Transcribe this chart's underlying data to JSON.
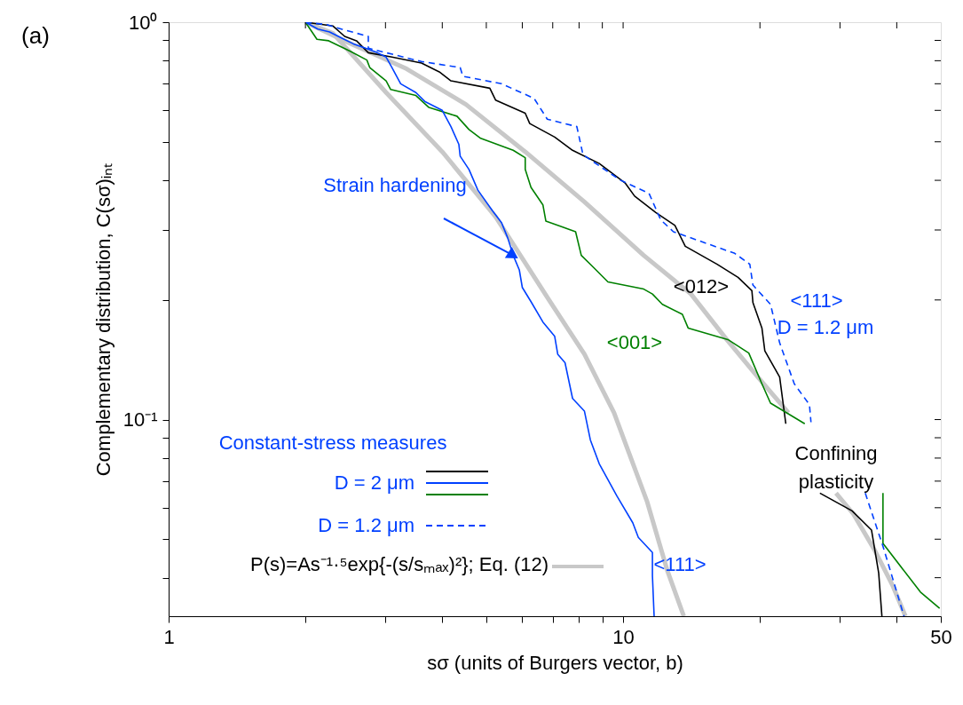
{
  "chart_data": {
    "type": "line",
    "xlabel": "sσ (units of Burgers vector, b)",
    "ylabel": "Complementary distribution, C(sσ)ᵢₙₜ",
    "log": "xy",
    "grid": false,
    "xlim": [
      1,
      50
    ],
    "ylim": [
      0.032,
      1
    ],
    "xticks": [
      1,
      {
        "value": 2,
        "label": null
      },
      {
        "value": 3,
        "label": null
      },
      {
        "value": 4,
        "label": null
      },
      {
        "value": 5,
        "label": null
      },
      {
        "value": 6,
        "label": null
      },
      {
        "value": 7,
        "label": null
      },
      {
        "value": 8,
        "label": null
      },
      {
        "value": 9,
        "label": null
      },
      10,
      {
        "value": 20,
        "label": null
      },
      {
        "value": 30,
        "label": null
      },
      {
        "value": 40,
        "label": null
      },
      50
    ],
    "yticks": [
      {
        "value": 0.04,
        "label": null
      },
      {
        "value": 0.05,
        "label": null
      },
      {
        "value": 0.06,
        "label": null
      },
      {
        "value": 0.07,
        "label": null
      },
      {
        "value": 0.08,
        "label": null
      },
      {
        "value": 0.09,
        "label": null
      },
      {
        "value": 0.1,
        "label": "10⁻¹"
      },
      {
        "value": 0.2,
        "label": null
      },
      {
        "value": 0.3,
        "label": null
      },
      {
        "value": 0.4,
        "label": null
      },
      {
        "value": 0.5,
        "label": null
      },
      {
        "value": 0.6,
        "label": null
      },
      {
        "value": 0.7,
        "label": null
      },
      {
        "value": 0.8,
        "label": null
      },
      {
        "value": 0.9,
        "label": null
      },
      {
        "value": 1,
        "label": "10⁰"
      }
    ],
    "series": [
      {
        "name": "P(s)=As⁻¹·⁵exp{-(s/sₘₐₓ)²}; Eq. (12)",
        "color": "#c8c8c8",
        "x": [
          2,
          2.3,
          3.01,
          4.0,
          5.24,
          6.87,
          8.22,
          9.55,
          11.3,
          12.5,
          13.6
        ],
        "values": [
          1,
          0.937,
          0.665,
          0.472,
          0.324,
          0.2,
          0.146,
          0.104,
          0.062,
          0.0418,
          0.032
        ]
      },
      {
        "color": "#c8c8c8",
        "x": [
          2,
          2.48,
          3.34,
          4.51,
          6.09,
          8.22,
          11.1,
          14.1,
          16.9,
          19.9,
          23.1,
          26,
          29.4,
          32.1,
          35.7,
          39.1,
          41.8
        ],
        "values": [
          1,
          0.89,
          0.763,
          0.621,
          0.472,
          0.353,
          0.259,
          0.207,
          0.159,
          0.127,
          0.104,
          null,
          0.0653,
          0.0579,
          0.0471,
          0.0384,
          0.032
        ]
      },
      {
        "name": "<012>",
        "color": "#000000",
        "x": [
          2,
          2.3,
          2.44,
          2.59,
          2.75,
          3.1,
          3.6,
          3.94,
          4.18,
          5.09,
          5.24,
          6.09,
          6.23,
          7.07,
          7.74,
          8.86,
          10.1,
          10.6,
          11.8,
          13.0,
          13.7,
          16.1,
          17.9,
          19.2,
          19.3,
          20.2,
          20.5,
          22.1,
          22.8,
          25,
          27.1,
          31.9,
          35.2,
          36.5,
          37.1
        ],
        "values": [
          1,
          0.978,
          0.921,
          0.898,
          0.838,
          0.817,
          0.789,
          0.75,
          0.712,
          0.682,
          0.637,
          0.59,
          0.556,
          0.514,
          0.476,
          0.441,
          0.394,
          0.365,
          0.332,
          0.308,
          0.273,
          0.246,
          0.228,
          0.211,
          0.197,
          0.17,
          0.149,
          0.128,
          0.0976,
          null,
          0.0653,
          0.0589,
          0.0527,
          0.0411,
          0.032
        ]
      },
      {
        "name": "<001>",
        "color": "#008000",
        "x": [
          2,
          2.12,
          2.25,
          2.51,
          2.73,
          2.77,
          3.01,
          3.08,
          3.5,
          3.74,
          4.31,
          4.58,
          4.86,
          5.73,
          6.09,
          6.09,
          6.27,
          6.66,
          6.76,
          7.86,
          8.09,
          8.59,
          9.26,
          11.1,
          11.6,
          12.2,
          13.5,
          13.9,
          17.0,
          18.9,
          20.2,
          21.1,
          25.1,
          30,
          37.3,
          37.3,
          45.1,
          49.7
        ],
        "values": [
          1,
          0.906,
          0.898,
          0.845,
          0.803,
          0.769,
          0.712,
          0.677,
          0.654,
          0.61,
          0.58,
          0.537,
          0.51,
          0.476,
          0.456,
          0.426,
          0.384,
          0.347,
          0.316,
          0.297,
          0.259,
          0.242,
          0.222,
          0.213,
          0.207,
          0.195,
          0.184,
          0.17,
          0.159,
          0.147,
          0.123,
          0.11,
          0.0976,
          null,
          0.0653,
          0.0488,
          0.0368,
          0.0335
        ]
      },
      {
        "name": "<111>",
        "color": "#0040ff",
        "x": [
          2,
          2.13,
          2.26,
          2.4,
          2.55,
          2.71,
          2.88,
          3.01,
          3.1,
          3.24,
          3.5,
          3.66,
          4.0,
          4.18,
          4.35,
          4.38,
          4.58,
          4.79,
          5.16,
          5.4,
          5.57,
          5.73,
          5.91,
          6.0,
          6.27,
          6.66,
          7.07,
          7.18,
          7.45,
          7.74,
          8.22,
          8.47,
          8.86,
          9.69,
          10.5,
          10.8,
          11.6,
          11.6,
          11.7
        ],
        "values": [
          1,
          0.961,
          0.945,
          0.913,
          0.882,
          0.86,
          0.838,
          0.817,
          0.769,
          0.7,
          0.665,
          0.632,
          0.6,
          0.546,
          0.493,
          0.46,
          0.426,
          0.378,
          0.335,
          0.313,
          0.287,
          0.259,
          0.238,
          0.215,
          0.198,
          0.176,
          0.162,
          0.146,
          0.139,
          0.113,
          0.105,
          0.0889,
          0.0774,
          0.0642,
          0.055,
          0.0505,
          0.0463,
          0.0405,
          0.032
        ]
      },
      {
        "name": "<111>",
        "color": "#0040ff",
        "line_style": "dashed",
        "x": [
          2,
          2.23,
          2.4,
          2.75,
          2.75,
          3.6,
          4.38,
          4.44,
          5.4,
          6.37,
          6.81,
          7.91,
          8.16,
          9.84,
          11.4,
          12.1,
          12.9,
          17.6,
          19.0,
          19.3,
          21.1,
          22.1,
          23.8,
          25.7,
          25.9,
          30,
          34.1,
          37.3,
          41.5
        ],
        "values": [
          1,
          0.986,
          0.961,
          0.921,
          0.86,
          0.796,
          0.769,
          0.731,
          0.7,
          0.643,
          0.57,
          0.546,
          0.464,
          0.401,
          0.371,
          0.318,
          0.297,
          0.262,
          0.246,
          0.218,
          0.195,
          0.156,
          0.123,
          0.109,
          0.0985,
          null,
          0.0653,
          0.048,
          0.032
        ]
      }
    ],
    "annotations": [
      "(a)",
      {
        "text": "Strain hardening",
        "x": 5.73,
        "y": 0.259
      },
      "D = 1.2 μm",
      "Confining plasticity",
      "Constant-stress measures",
      "D = 2 μm",
      "D = 1.2 μm"
    ]
  }
}
